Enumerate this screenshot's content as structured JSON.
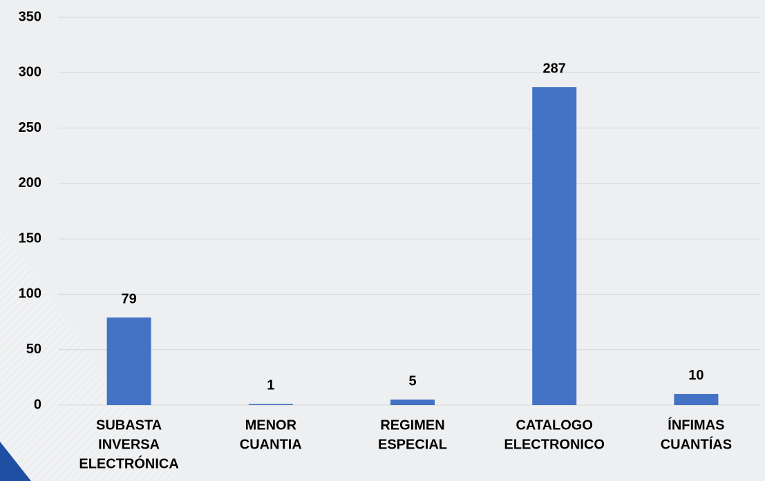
{
  "chart_data": {
    "type": "bar",
    "categories": [
      [
        "SUBASTA",
        "INVERSA",
        "ELECTRÓNICA"
      ],
      [
        "MENOR",
        "CUANTIA"
      ],
      [
        "REGIMEN",
        "ESPECIAL"
      ],
      [
        "CATALOGO",
        "ELECTRONICO"
      ],
      [
        "ÍNFIMAS",
        "CUANTÍAS"
      ]
    ],
    "values": [
      79,
      1,
      5,
      287,
      10
    ],
    "color": "#4472c4",
    "ylim": [
      0,
      350
    ],
    "yticks": [
      0,
      50,
      100,
      150,
      200,
      250,
      300,
      350
    ],
    "grid": true
  }
}
